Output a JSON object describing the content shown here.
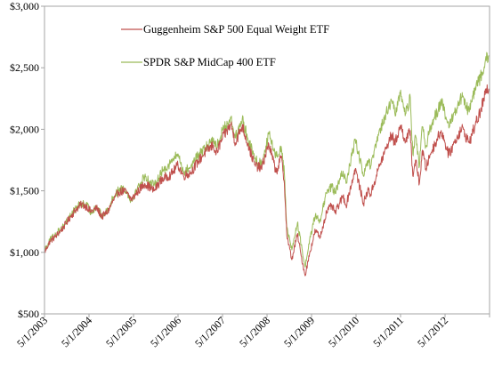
{
  "chart_data": {
    "type": "line",
    "title": "",
    "xlabel": "",
    "ylabel": "",
    "x_tick_labels": [
      "5/1/2003",
      "5/1/2004",
      "5/1/2005",
      "5/1/2006",
      "5/1/2007",
      "5/1/2008",
      "5/1/2009",
      "5/1/2010",
      "5/1/2011",
      "5/1/2012"
    ],
    "y_tick_labels": [
      "$500",
      "$1,000",
      "$1,500",
      "$2,000",
      "$2,500",
      "$3,000"
    ],
    "ylim": [
      500,
      3000
    ],
    "xlim": [
      "2003-05-01",
      "2013-05-01"
    ],
    "grid": false,
    "legend_position": "top-center",
    "series": [
      {
        "name": "Guggenheim S&P 500 Equal Weight ETF",
        "color": "#c0504d",
        "points": [
          [
            "2003-05-01",
            1000
          ],
          [
            "2003-06-15",
            1090
          ],
          [
            "2003-08-01",
            1130
          ],
          [
            "2003-10-01",
            1200
          ],
          [
            "2003-12-01",
            1290
          ],
          [
            "2004-01-15",
            1350
          ],
          [
            "2004-03-01",
            1390
          ],
          [
            "2004-04-15",
            1370
          ],
          [
            "2004-05-15",
            1330
          ],
          [
            "2004-07-01",
            1360
          ],
          [
            "2004-08-15",
            1290
          ],
          [
            "2004-10-01",
            1330
          ],
          [
            "2004-11-15",
            1420
          ],
          [
            "2004-12-31",
            1490
          ],
          [
            "2005-02-15",
            1500
          ],
          [
            "2005-04-15",
            1430
          ],
          [
            "2005-06-01",
            1490
          ],
          [
            "2005-08-01",
            1560
          ],
          [
            "2005-10-15",
            1500
          ],
          [
            "2005-12-15",
            1590
          ],
          [
            "2006-03-01",
            1630
          ],
          [
            "2006-05-01",
            1710
          ],
          [
            "2006-06-15",
            1620
          ],
          [
            "2006-08-15",
            1650
          ],
          [
            "2006-10-15",
            1740
          ],
          [
            "2006-12-15",
            1820
          ],
          [
            "2007-02-15",
            1870
          ],
          [
            "2007-03-10",
            1800
          ],
          [
            "2007-05-01",
            1930
          ],
          [
            "2007-07-10",
            2040
          ],
          [
            "2007-08-15",
            1890
          ],
          [
            "2007-10-10",
            2030
          ],
          [
            "2007-11-25",
            1880
          ],
          [
            "2008-01-20",
            1710
          ],
          [
            "2008-03-15",
            1680
          ],
          [
            "2008-05-15",
            1880
          ],
          [
            "2008-07-15",
            1650
          ],
          [
            "2008-08-25",
            1780
          ],
          [
            "2008-09-20",
            1560
          ],
          [
            "2008-10-10",
            1140
          ],
          [
            "2008-11-20",
            940
          ],
          [
            "2009-01-05",
            1150
          ],
          [
            "2009-02-05",
            970
          ],
          [
            "2009-03-09",
            810
          ],
          [
            "2009-04-15",
            990
          ],
          [
            "2009-06-01",
            1180
          ],
          [
            "2009-07-10",
            1120
          ],
          [
            "2009-09-01",
            1330
          ],
          [
            "2009-10-15",
            1380
          ],
          [
            "2009-11-10",
            1320
          ],
          [
            "2010-01-15",
            1460
          ],
          [
            "2010-02-08",
            1380
          ],
          [
            "2010-04-25",
            1680
          ],
          [
            "2010-07-01",
            1400
          ],
          [
            "2010-08-15",
            1520
          ],
          [
            "2010-08-27",
            1460
          ],
          [
            "2010-11-01",
            1680
          ],
          [
            "2011-01-01",
            1840
          ],
          [
            "2011-02-18",
            1960
          ],
          [
            "2011-03-16",
            1880
          ],
          [
            "2011-04-29",
            2030
          ],
          [
            "2011-06-15",
            1900
          ],
          [
            "2011-07-20",
            1990
          ],
          [
            "2011-08-10",
            1620
          ],
          [
            "2011-09-01",
            1750
          ],
          [
            "2011-10-03",
            1560
          ],
          [
            "2011-10-28",
            1830
          ],
          [
            "2011-11-25",
            1680
          ],
          [
            "2012-01-01",
            1800
          ],
          [
            "2012-03-30",
            1990
          ],
          [
            "2012-06-01",
            1790
          ],
          [
            "2012-07-15",
            1890
          ],
          [
            "2012-09-15",
            2010
          ],
          [
            "2012-11-15",
            1890
          ],
          [
            "2013-01-01",
            2030
          ],
          [
            "2013-02-15",
            2140
          ],
          [
            "2013-03-25",
            2280
          ],
          [
            "2013-04-25",
            2330
          ]
        ]
      },
      {
        "name": "SPDR S&P MidCap 400 ETF",
        "color": "#9bbb59",
        "points": [
          [
            "2003-05-01",
            1020
          ],
          [
            "2003-06-15",
            1100
          ],
          [
            "2003-08-01",
            1150
          ],
          [
            "2003-10-01",
            1210
          ],
          [
            "2003-12-01",
            1300
          ],
          [
            "2004-01-15",
            1360
          ],
          [
            "2004-03-01",
            1400
          ],
          [
            "2004-04-15",
            1380
          ],
          [
            "2004-05-15",
            1320
          ],
          [
            "2004-07-01",
            1380
          ],
          [
            "2004-08-15",
            1290
          ],
          [
            "2004-10-01",
            1340
          ],
          [
            "2004-11-15",
            1450
          ],
          [
            "2004-12-31",
            1510
          ],
          [
            "2005-02-15",
            1520
          ],
          [
            "2005-04-15",
            1420
          ],
          [
            "2005-06-01",
            1520
          ],
          [
            "2005-08-01",
            1620
          ],
          [
            "2005-10-15",
            1540
          ],
          [
            "2005-12-15",
            1650
          ],
          [
            "2006-03-01",
            1730
          ],
          [
            "2006-05-01",
            1800
          ],
          [
            "2006-06-15",
            1650
          ],
          [
            "2006-08-15",
            1700
          ],
          [
            "2006-10-15",
            1790
          ],
          [
            "2006-12-15",
            1850
          ],
          [
            "2007-02-15",
            1930
          ],
          [
            "2007-03-10",
            1850
          ],
          [
            "2007-05-01",
            1990
          ],
          [
            "2007-07-10",
            2090
          ],
          [
            "2007-08-15",
            1930
          ],
          [
            "2007-10-10",
            2080
          ],
          [
            "2007-11-25",
            1930
          ],
          [
            "2008-01-20",
            1760
          ],
          [
            "2008-03-15",
            1720
          ],
          [
            "2008-05-15",
            1960
          ],
          [
            "2008-07-15",
            1780
          ],
          [
            "2008-08-25",
            1860
          ],
          [
            "2008-09-20",
            1640
          ],
          [
            "2008-10-10",
            1200
          ],
          [
            "2008-11-20",
            1020
          ],
          [
            "2009-01-05",
            1240
          ],
          [
            "2009-02-05",
            1060
          ],
          [
            "2009-03-09",
            880
          ],
          [
            "2009-04-15",
            1100
          ],
          [
            "2009-06-01",
            1300
          ],
          [
            "2009-07-10",
            1260
          ],
          [
            "2009-09-01",
            1480
          ],
          [
            "2009-10-15",
            1540
          ],
          [
            "2009-11-10",
            1480
          ],
          [
            "2010-01-15",
            1660
          ],
          [
            "2010-02-08",
            1560
          ],
          [
            "2010-04-25",
            1920
          ],
          [
            "2010-07-01",
            1620
          ],
          [
            "2010-08-15",
            1760
          ],
          [
            "2010-08-27",
            1680
          ],
          [
            "2010-11-01",
            1950
          ],
          [
            "2011-01-01",
            2120
          ],
          [
            "2011-02-18",
            2230
          ],
          [
            "2011-03-16",
            2130
          ],
          [
            "2011-04-29",
            2290
          ],
          [
            "2011-06-15",
            2130
          ],
          [
            "2011-07-20",
            2260
          ],
          [
            "2011-08-10",
            1800
          ],
          [
            "2011-09-01",
            1950
          ],
          [
            "2011-10-03",
            1700
          ],
          [
            "2011-10-28",
            2020
          ],
          [
            "2011-11-25",
            1860
          ],
          [
            "2012-01-01",
            2010
          ],
          [
            "2012-03-30",
            2230
          ],
          [
            "2012-06-01",
            2010
          ],
          [
            "2012-07-15",
            2140
          ],
          [
            "2012-09-15",
            2260
          ],
          [
            "2012-11-15",
            2140
          ],
          [
            "2013-01-01",
            2330
          ],
          [
            "2013-02-15",
            2420
          ],
          [
            "2013-03-25",
            2540
          ],
          [
            "2013-04-25",
            2600
          ]
        ]
      }
    ]
  }
}
